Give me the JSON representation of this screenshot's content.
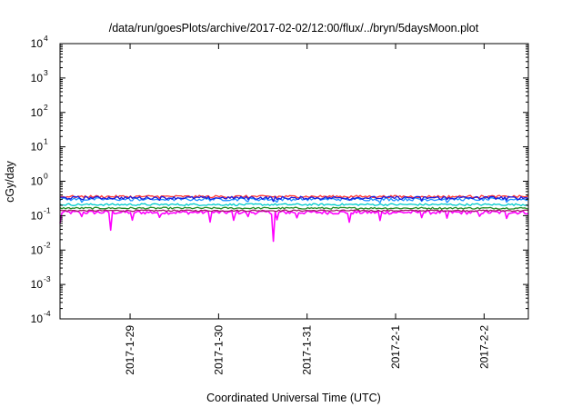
{
  "chart_data": {
    "type": "line",
    "title": "/data/run/goesPlots/archive/2017-02-02/12:00/flux/../bryn/5daysMoon.plot",
    "xlabel": "Coordinated Universal Time (UTC)",
    "ylabel": "cGy/day",
    "yscale": "log",
    "ylim": [
      0.0001,
      10000
    ],
    "y_ticks": [
      {
        "base": "10",
        "exp": "-4",
        "value": 0.0001
      },
      {
        "base": "10",
        "exp": "-3",
        "value": 0.001
      },
      {
        "base": "10",
        "exp": "-2",
        "value": 0.01
      },
      {
        "base": "10",
        "exp": "-1",
        "value": 0.1
      },
      {
        "base": "10",
        "exp": "0",
        "value": 1
      },
      {
        "base": "10",
        "exp": "1",
        "value": 10
      },
      {
        "base": "10",
        "exp": "2",
        "value": 100
      },
      {
        "base": "10",
        "exp": "3",
        "value": 1000
      },
      {
        "base": "10",
        "exp": "4",
        "value": 10000
      }
    ],
    "xlim": [
      "2017-01-28T05:00",
      "2017-02-02T12:00"
    ],
    "x_ticks": [
      {
        "label": "2017-1-29",
        "value": "2017-01-29T00:00"
      },
      {
        "label": "2017-1-30",
        "value": "2017-01-30T00:00"
      },
      {
        "label": "2017-1-31",
        "value": "2017-01-31T00:00"
      },
      {
        "label": "2017-2-1",
        "value": "2017-02-01T00:00"
      },
      {
        "label": "2017-2-2",
        "value": "2017-02-02T00:00"
      }
    ],
    "grid": false,
    "legend": "none",
    "series": [
      {
        "color": "#ff00ff",
        "base": 0.125,
        "jitter": 0.12,
        "dips": 0.5
      },
      {
        "color": "#a0206b",
        "base": 0.14,
        "jitter": 0.05,
        "dips": 0.0
      },
      {
        "color": "#228b22",
        "base": 0.165,
        "jitter": 0.06,
        "dips": 0.0
      },
      {
        "color": "#00cccc",
        "base": 0.21,
        "jitter": 0.07,
        "dips": 0.0
      },
      {
        "color": "#1e90ff",
        "base": 0.3,
        "jitter": 0.1,
        "dips": 0.15
      },
      {
        "color": "#ff3333",
        "base": 0.36,
        "jitter": 0.08,
        "dips": 0.05
      },
      {
        "color": "#1a1adc",
        "base": 0.33,
        "jitter": 0.1,
        "dips": 0.15
      }
    ]
  }
}
